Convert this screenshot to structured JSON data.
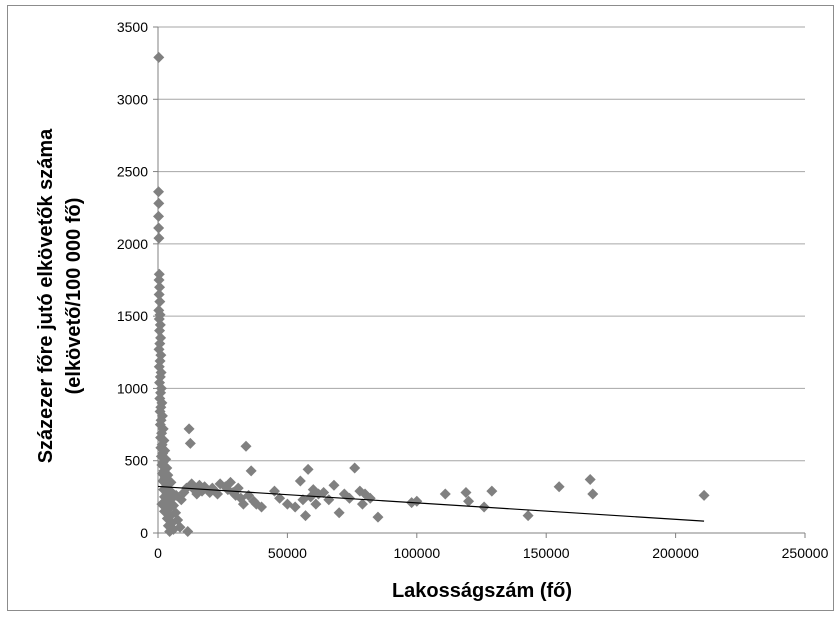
{
  "chart_data": {
    "type": "scatter",
    "title": "",
    "xlabel": "Lakosságszám (fő)",
    "ylabel_lines": [
      "Százezer főre jutó elkövetők száma",
      "(elkövető/100 000 fő)"
    ],
    "xlim": [
      0,
      250000
    ],
    "ylim": [
      0,
      3500
    ],
    "x_ticks": [
      0,
      50000,
      100000,
      150000,
      200000,
      250000
    ],
    "y_ticks": [
      0,
      500,
      1000,
      1500,
      2000,
      2500,
      3000,
      3500
    ],
    "x_tick_labels": [
      "0",
      "50000",
      "100000",
      "150000",
      "200000",
      "250000"
    ],
    "y_tick_labels": [
      "0",
      "500",
      "1000",
      "1500",
      "2000",
      "2500",
      "3000",
      "3500"
    ],
    "grid": true,
    "marker_color": "#808080",
    "trendline": {
      "x": [
        0,
        211000
      ],
      "y": [
        322,
        82
      ]
    },
    "points": [
      [
        300,
        3290
      ],
      [
        200,
        2360
      ],
      [
        300,
        2280
      ],
      [
        200,
        2190
      ],
      [
        250,
        2110
      ],
      [
        350,
        2040
      ],
      [
        500,
        1790
      ],
      [
        400,
        1750
      ],
      [
        600,
        1700
      ],
      [
        450,
        1650
      ],
      [
        700,
        1600
      ],
      [
        300,
        1540
      ],
      [
        800,
        1510
      ],
      [
        500,
        1480
      ],
      [
        900,
        1440
      ],
      [
        600,
        1400
      ],
      [
        1000,
        1350
      ],
      [
        700,
        1310
      ],
      [
        400,
        1270
      ],
      [
        1100,
        1230
      ],
      [
        800,
        1190
      ],
      [
        500,
        1150
      ],
      [
        1200,
        1110
      ],
      [
        900,
        1080
      ],
      [
        600,
        1040
      ],
      [
        1300,
        1000
      ],
      [
        1000,
        970
      ],
      [
        700,
        930
      ],
      [
        1500,
        900
      ],
      [
        1100,
        870
      ],
      [
        800,
        840
      ],
      [
        1700,
        810
      ],
      [
        1200,
        780
      ],
      [
        900,
        750
      ],
      [
        2000,
        720
      ],
      [
        1400,
        690
      ],
      [
        1000,
        660
      ],
      [
        2300,
        640
      ],
      [
        1600,
        610
      ],
      [
        1100,
        590
      ],
      [
        2600,
        570
      ],
      [
        1800,
        550
      ],
      [
        1300,
        530
      ],
      [
        3000,
        510
      ],
      [
        2000,
        490
      ],
      [
        1500,
        470
      ],
      [
        3400,
        450
      ],
      [
        2300,
        430
      ],
      [
        1700,
        410
      ],
      [
        3800,
        400
      ],
      [
        2600,
        380
      ],
      [
        1900,
        360
      ],
      [
        4300,
        340
      ],
      [
        3000,
        320
      ],
      [
        2200,
        300
      ],
      [
        4800,
        290
      ],
      [
        3400,
        270
      ],
      [
        2500,
        250
      ],
      [
        5400,
        240
      ],
      [
        3800,
        220
      ],
      [
        2800,
        200
      ],
      [
        6000,
        190
      ],
      [
        4300,
        170
      ],
      [
        3200,
        150
      ],
      [
        6800,
        140
      ],
      [
        4800,
        120
      ],
      [
        3600,
        100
      ],
      [
        7600,
        90
      ],
      [
        5400,
        70
      ],
      [
        4000,
        50
      ],
      [
        8500,
        40
      ],
      [
        6000,
        25
      ],
      [
        4500,
        10
      ],
      [
        1500,
        200
      ],
      [
        2500,
        150
      ],
      [
        3500,
        300
      ],
      [
        5000,
        350
      ],
      [
        7000,
        260
      ],
      [
        9000,
        230
      ],
      [
        10000,
        280
      ],
      [
        11000,
        310
      ],
      [
        12000,
        720
      ],
      [
        12500,
        620
      ],
      [
        13000,
        340
      ],
      [
        14000,
        300
      ],
      [
        15000,
        270
      ],
      [
        16000,
        330
      ],
      [
        17000,
        290
      ],
      [
        18000,
        320
      ],
      [
        19000,
        300
      ],
      [
        20000,
        280
      ],
      [
        21000,
        310
      ],
      [
        22000,
        290
      ],
      [
        23000,
        270
      ],
      [
        24000,
        340
      ],
      [
        26000,
        320
      ],
      [
        27000,
        300
      ],
      [
        28000,
        350
      ],
      [
        29000,
        280
      ],
      [
        30000,
        260
      ],
      [
        31000,
        310
      ],
      [
        32000,
        240
      ],
      [
        33000,
        200
      ],
      [
        34000,
        600
      ],
      [
        35000,
        260
      ],
      [
        36000,
        430
      ],
      [
        37000,
        220
      ],
      [
        38000,
        200
      ],
      [
        40000,
        180
      ],
      [
        45000,
        290
      ],
      [
        47000,
        240
      ],
      [
        50000,
        200
      ],
      [
        53000,
        180
      ],
      [
        55000,
        360
      ],
      [
        56000,
        230
      ],
      [
        57000,
        120
      ],
      [
        58000,
        440
      ],
      [
        59000,
        250
      ],
      [
        60000,
        300
      ],
      [
        61000,
        200
      ],
      [
        62000,
        270
      ],
      [
        64000,
        280
      ],
      [
        66000,
        230
      ],
      [
        68000,
        330
      ],
      [
        70000,
        140
      ],
      [
        72000,
        270
      ],
      [
        74000,
        240
      ],
      [
        76000,
        450
      ],
      [
        78000,
        290
      ],
      [
        79000,
        200
      ],
      [
        80000,
        270
      ],
      [
        82000,
        240
      ],
      [
        85000,
        110
      ],
      [
        98000,
        210
      ],
      [
        100000,
        220
      ],
      [
        111000,
        270
      ],
      [
        119000,
        280
      ],
      [
        120000,
        220
      ],
      [
        126000,
        180
      ],
      [
        129000,
        290
      ],
      [
        143000,
        120
      ],
      [
        155000,
        320
      ],
      [
        167000,
        370
      ],
      [
        168000,
        270
      ],
      [
        211000,
        260
      ],
      [
        11500,
        10
      ]
    ]
  }
}
